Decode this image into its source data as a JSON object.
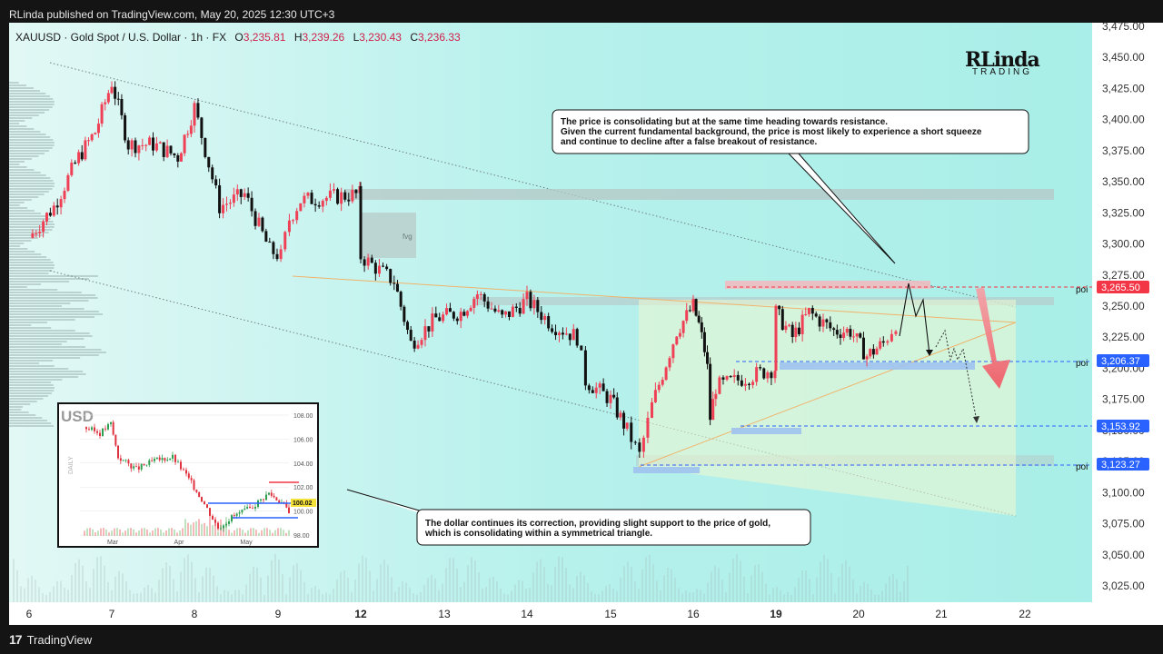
{
  "header": {
    "publisher": "RLinda published on TradingView.com, May 20, 2025 12:30 UTC+3"
  },
  "symbol": {
    "description": "XAUUSD · Gold Spot / U.S. Dollar · 1h · FX",
    "open_label": "O",
    "open_value": "3,235.81",
    "high_label": "H",
    "high_value": "3,239.26",
    "low_label": "L",
    "low_value": "3,230.43",
    "close_label": "C",
    "close_value": "3,236.33"
  },
  "brand": {
    "line1": "RLinda",
    "line2": "TRADING"
  },
  "annotations": {
    "top_note": [
      "The price is consolidating but at the same time heading towards resistance.",
      "Given the current fundamental background, the price is most likely to experience a short squeeze",
      "and continue to decline after a false breakout of resistance."
    ],
    "bottom_note": [
      "The dollar continues its correction, providing slight support to the price of gold,",
      "which is consolidating within a symmetrical triangle."
    ],
    "fvg_label": "fvg",
    "poi_label": "poi"
  },
  "price_tags": [
    {
      "value": "3,265.50",
      "color": "#f23645"
    },
    {
      "value": "3,206.37",
      "color": "#2962ff"
    },
    {
      "value": "3,153.92",
      "color": "#2962ff"
    },
    {
      "value": "3,123.27",
      "color": "#2962ff"
    }
  ],
  "inset": {
    "title": "USD",
    "timeframe": "DAILY",
    "y_ticks": [
      "108.00",
      "106.00",
      "104.00",
      "102.00",
      "100.00",
      "98.00"
    ],
    "x_ticks": [
      "Mar",
      "Apr",
      "May"
    ],
    "last_value": "100.02"
  },
  "footer": {
    "brand": "TradingView"
  },
  "chart_data": {
    "type": "candlestick",
    "title": "XAUUSD · Gold Spot / U.S. Dollar · 1h · FX",
    "y_ticks": [
      3475,
      3450,
      3425,
      3400,
      3375,
      3350,
      3325,
      3300,
      3275,
      3250,
      3225,
      3200,
      3175,
      3150,
      3125,
      3100,
      3075,
      3050,
      3025
    ],
    "y_tick_labels": [
      "3,475.00",
      "3,450.00",
      "3,425.00",
      "3,400.00",
      "3,375.00",
      "3,350.00",
      "3,325.00",
      "3,300.00",
      "3,275.00",
      "3,250.00",
      "3,225.00",
      "3,200.00",
      "3,175.00",
      "3,150.00",
      "3,125.00",
      "3,100.00",
      "3,075.00",
      "3,050.00",
      "3,025.00"
    ],
    "ylim": [
      3013,
      3478
    ],
    "x_ticks": [
      "6",
      "7",
      "8",
      "9",
      "12",
      "13",
      "14",
      "15",
      "16",
      "19",
      "20",
      "21",
      "22"
    ],
    "bold_x_ticks": [
      "12",
      "19"
    ],
    "close_path": [
      [
        "6",
        3305
      ],
      [
        "6.3",
        3330
      ],
      [
        "6.6",
        3370
      ],
      [
        "6.8",
        3390
      ],
      [
        "7",
        3430
      ],
      [
        "7.2",
        3380
      ],
      [
        "7.5",
        3380
      ],
      [
        "7.8",
        3370
      ],
      [
        "8",
        3410
      ],
      [
        "8.3",
        3330
      ],
      [
        "8.6",
        3340
      ],
      [
        "8.9",
        3295
      ],
      [
        "9.1",
        3290
      ],
      [
        "9.4",
        3320
      ],
      [
        "9.8",
        3335
      ],
      [
        "11.9",
        3340
      ],
      [
        "12",
        3290
      ],
      [
        "12.4",
        3270
      ],
      [
        "12.6",
        3220
      ],
      [
        "12.9",
        3240
      ],
      [
        "13.2",
        3245
      ],
      [
        "13.4",
        3260
      ],
      [
        "13.7",
        3240
      ],
      [
        "14",
        3255
      ],
      [
        "14.3",
        3235
      ],
      [
        "14.6",
        3225
      ],
      [
        "14.7",
        3190
      ],
      [
        "15",
        3175
      ],
      [
        "15.2",
        3150
      ],
      [
        "15.35",
        3130
      ],
      [
        "15.5",
        3170
      ],
      [
        "15.8",
        3230
      ],
      [
        "16",
        3250
      ],
      [
        "16.2",
        3235
      ],
      [
        "16.4",
        3215
      ],
      [
        "16.5",
        3200
      ],
      [
        "16.6",
        3160
      ],
      [
        "16.8",
        3185
      ],
      [
        "18.9",
        3200
      ],
      [
        "19",
        3245
      ],
      [
        "19.2",
        3225
      ],
      [
        "19.4",
        3245
      ],
      [
        "19.7",
        3230
      ],
      [
        "19.9",
        3230
      ],
      [
        "20.1",
        3210
      ],
      [
        "20.3",
        3220
      ],
      [
        "20.45",
        3236.33
      ]
    ]
  }
}
